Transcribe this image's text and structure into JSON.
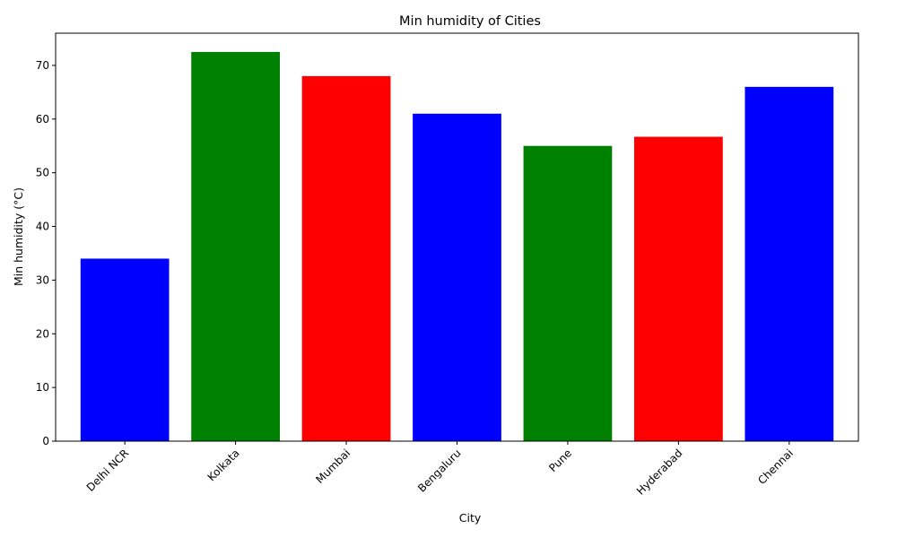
{
  "chart_data": {
    "type": "bar",
    "title": "Min humidity of Cities",
    "xlabel": "City",
    "ylabel": "Min humidity (°C)",
    "categories": [
      "Delhi NCR",
      "Kolkata",
      "Mumbai",
      "Bengaluru",
      "Pune",
      "Hyderabad",
      "Chennai"
    ],
    "values": [
      34.0,
      72.5,
      68.0,
      61.0,
      55.0,
      56.7,
      66.0
    ],
    "bar_colors": [
      "#0000ff",
      "#008000",
      "#ff0000",
      "#0000ff",
      "#008000",
      "#ff0000",
      "#0000ff"
    ],
    "ylim": [
      0,
      76
    ],
    "yticks": [
      0,
      10,
      20,
      30,
      40,
      50,
      60,
      70
    ],
    "grid": false,
    "legend": "none"
  }
}
